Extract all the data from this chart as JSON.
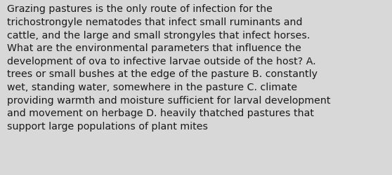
{
  "lines": [
    "Grazing pastures is the only route of infection for the",
    "trichostrongyle nematodes that infect small ruminants and",
    "cattle, and the large and small strongyles that infect horses.",
    "What are the environmental parameters that influence the",
    "development of ova to infective larvae outside of the host? A.",
    "trees or small bushes at the edge of the pasture B. constantly",
    "wet, standing water, somewhere in the pasture C. climate",
    "providing warmth and moisture sufficient for larval development",
    "and movement on herbage D. heavily thatched pastures that",
    "support large populations of plant mites"
  ],
  "background_color": "#d8d8d8",
  "text_color": "#1a1a1a",
  "font_size": 10.2,
  "fig_width": 5.58,
  "fig_height": 2.51,
  "dpi": 100
}
